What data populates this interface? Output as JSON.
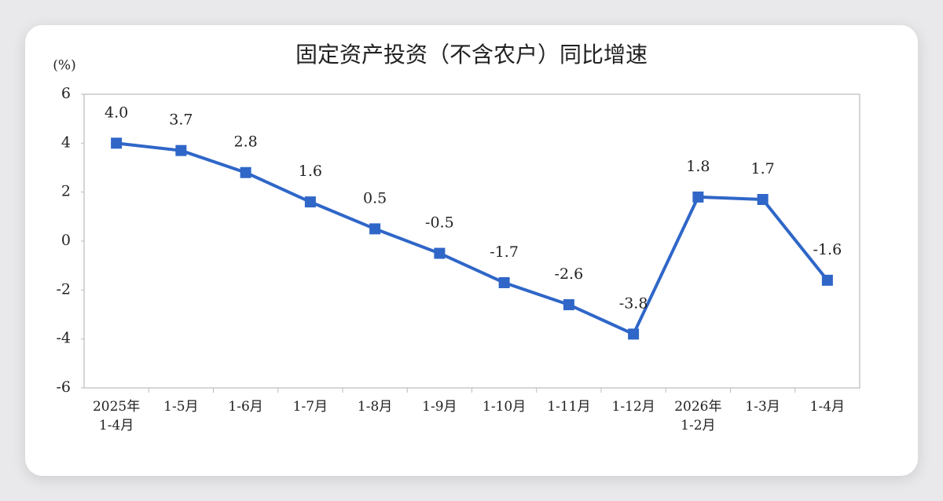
{
  "chart_data": {
    "type": "line",
    "title": "固定资产投资（不含农户）同比增速",
    "y_label": "(%)",
    "categories": [
      "2025年\n1-4月",
      "1-5月",
      "1-6月",
      "1-7月",
      "1-8月",
      "1-9月",
      "1-10月",
      "1-11月",
      "1-12月",
      "2026年\n1-2月",
      "1-3月",
      "1-4月"
    ],
    "values": [
      4.0,
      3.7,
      2.8,
      1.6,
      0.5,
      -0.5,
      -1.7,
      -2.6,
      -3.8,
      1.8,
      1.7,
      -1.6
    ],
    "value_labels": [
      "4.0",
      "3.7",
      "2.8",
      "1.6",
      "0.5",
      "-0.5",
      "-1.7",
      "-2.6",
      "-3.8",
      "1.8",
      "1.7",
      "-1.6"
    ],
    "color": "#2f66c8",
    "ylim": [
      -6,
      6
    ],
    "yticks": [
      -6,
      -4,
      -2,
      0,
      2,
      4,
      6
    ]
  }
}
